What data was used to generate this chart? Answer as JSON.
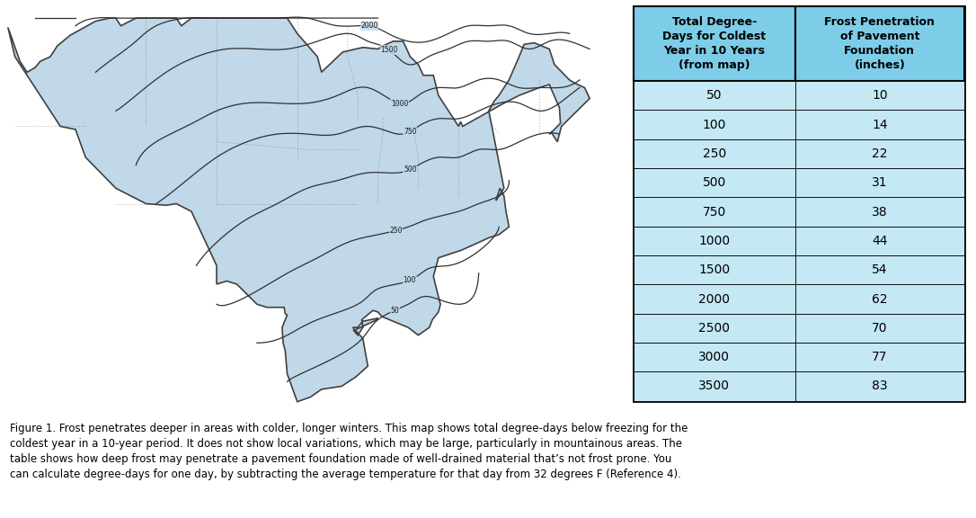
{
  "table_header_col1": "Total Degree-\nDays for Coldest\nYear in 10 Years\n(from map)",
  "table_header_col2": "Frost Penetration\nof Pavement\nFoundation\n(inches)",
  "degree_days": [
    50,
    100,
    250,
    500,
    750,
    1000,
    1500,
    2000,
    2500,
    3000,
    3500
  ],
  "frost_penetration": [
    10,
    14,
    22,
    31,
    38,
    44,
    54,
    62,
    70,
    77,
    83
  ],
  "header_bg_color": "#7DCDE8",
  "cell_bg_color": "#C5E8F5",
  "table_border_color": "#000000",
  "caption_line1": "Figure 1. Frost penetrates deeper in areas with colder, longer winters. This map shows total degree-days below freezing for the",
  "caption_line2": "coldest year in a 10-year period. It does not show local variations, which may be large, particularly in mountainous areas. The",
  "caption_line3": "table shows how deep frost may penetrate a pavement foundation made of well-drained material that’s not frost prone. You",
  "caption_line4": "can calculate degree-days for one day, by subtracting the average temperature for that day from 32 degrees F (Reference 4).",
  "caption_fontsize": 8.5,
  "map_bg_color": "#C8DCE8",
  "map_fill_color": "#C0D8E8",
  "map_border_color": "#404040",
  "contour_color": "#303030",
  "overall_bg_color": "#ffffff",
  "header_fontsize": 9,
  "cell_fontsize": 10,
  "fig_width": 10.86,
  "fig_height": 5.76
}
